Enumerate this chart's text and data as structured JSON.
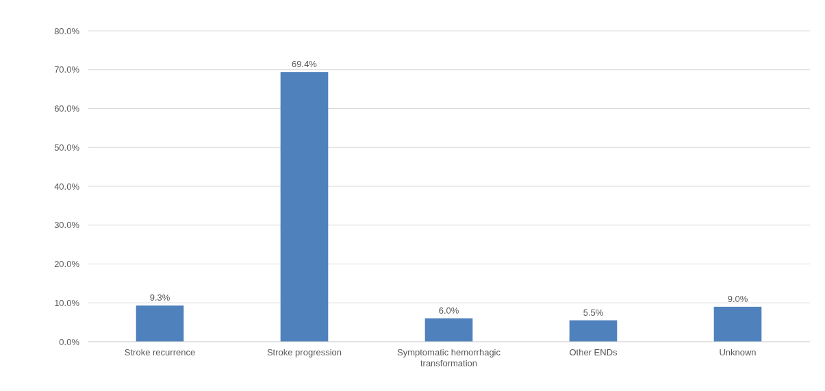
{
  "chart_data": {
    "type": "bar",
    "categories": [
      "Stroke recurrence",
      "Stroke progression",
      "Symptomatic hemorrhagic transformation",
      "Other ENDs",
      "Unknown"
    ],
    "values": [
      9.3,
      69.4,
      6.0,
      5.5,
      9.0
    ],
    "value_labels": [
      "9.3%",
      "69.4%",
      "6.0%",
      "5.5%",
      "9.0%"
    ],
    "color": "#4f81bd",
    "ylim": [
      0,
      80
    ],
    "yticks": [
      {
        "value": 0,
        "label": "0.0%"
      },
      {
        "value": 10,
        "label": "10.0%"
      },
      {
        "value": 20,
        "label": "20.0%"
      },
      {
        "value": 30,
        "label": "30.0%"
      },
      {
        "value": 40,
        "label": "40.0%"
      },
      {
        "value": 50,
        "label": "50.0%"
      },
      {
        "value": 60,
        "label": "60.0%"
      },
      {
        "value": 70,
        "label": "70.0%"
      },
      {
        "value": 80,
        "label": "80.0%"
      }
    ],
    "grid": "y"
  }
}
